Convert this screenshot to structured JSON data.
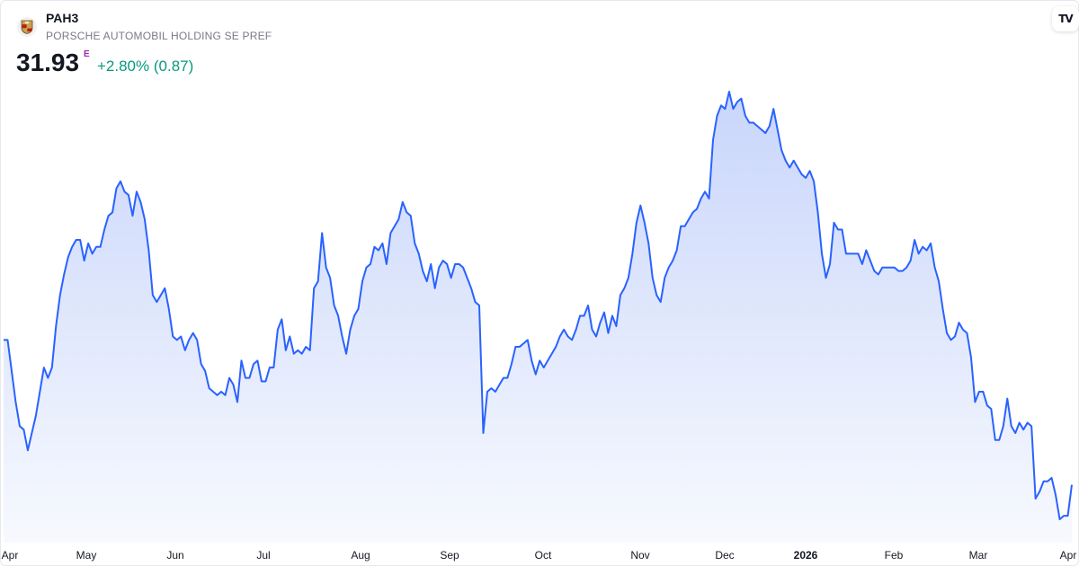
{
  "header": {
    "ticker": "PAH3",
    "company": "PORSCHE AUTOMOBIL HOLDING SE PREF",
    "price": "31.93",
    "price_flag": "E",
    "change": "+2.80% (0.87)",
    "logo_icon": "porsche-crest-icon",
    "brand_icon": "tradingview-logo-icon",
    "brand_text": "TV"
  },
  "colors": {
    "line": "#2962ff",
    "area_top": "#c9d6fb",
    "area_bottom": "#f7f9fe",
    "change_positive": "#089981",
    "flag": "#9c27b0"
  },
  "chart_data": {
    "type": "area",
    "x_ticks": [
      {
        "label": "Apr",
        "bold": false
      },
      {
        "label": "May",
        "bold": false
      },
      {
        "label": "Jun",
        "bold": false
      },
      {
        "label": "Jul",
        "bold": false
      },
      {
        "label": "Aug",
        "bold": false
      },
      {
        "label": "Sep",
        "bold": false
      },
      {
        "label": "Oct",
        "bold": false
      },
      {
        "label": "Nov",
        "bold": false
      },
      {
        "label": "Dec",
        "bold": false
      },
      {
        "label": "2026",
        "bold": true
      },
      {
        "label": "Feb",
        "bold": false
      },
      {
        "label": "Mar",
        "bold": false
      },
      {
        "label": "Apr",
        "bold": false
      }
    ],
    "values": [
      36.1,
      36.1,
      35.2,
      34.3,
      33.6,
      33.5,
      32.9,
      33.4,
      33.9,
      34.6,
      35.3,
      35.0,
      35.3,
      36.5,
      37.4,
      38.0,
      38.5,
      38.8,
      39.0,
      39.0,
      38.4,
      38.9,
      38.6,
      38.8,
      38.8,
      39.3,
      39.7,
      39.8,
      40.5,
      40.7,
      40.4,
      40.3,
      39.7,
      40.4,
      40.1,
      39.6,
      38.7,
      37.4,
      37.2,
      37.4,
      37.6,
      37.0,
      36.2,
      36.1,
      36.2,
      35.8,
      36.1,
      36.3,
      36.1,
      35.4,
      35.2,
      34.7,
      34.6,
      34.5,
      34.6,
      34.5,
      35.0,
      34.8,
      34.3,
      35.5,
      35.0,
      35.0,
      35.4,
      35.5,
      34.9,
      34.9,
      35.3,
      35.3,
      36.4,
      36.7,
      35.8,
      36.2,
      35.7,
      35.8,
      35.7,
      35.9,
      35.8,
      37.6,
      37.8,
      39.2,
      38.2,
      37.9,
      37.1,
      36.8,
      36.2,
      35.7,
      36.4,
      36.8,
      37.0,
      37.8,
      38.2,
      38.3,
      38.8,
      38.7,
      38.9,
      38.3,
      39.2,
      39.4,
      39.6,
      40.1,
      39.8,
      39.7,
      38.9,
      38.6,
      38.1,
      37.8,
      38.3,
      37.6,
      38.2,
      38.4,
      38.3,
      37.9,
      38.3,
      38.3,
      38.2,
      37.9,
      37.6,
      37.2,
      37.1,
      33.4,
      34.6,
      34.7,
      34.6,
      34.8,
      35.0,
      35.0,
      35.4,
      35.9,
      35.9,
      36.0,
      36.1,
      35.5,
      35.1,
      35.5,
      35.3,
      35.5,
      35.7,
      35.9,
      36.2,
      36.4,
      36.2,
      36.1,
      36.4,
      36.8,
      36.8,
      37.1,
      36.4,
      36.2,
      36.6,
      36.9,
      36.3,
      36.8,
      36.5,
      37.4,
      37.6,
      37.9,
      38.6,
      39.5,
      40.0,
      39.5,
      38.9,
      37.9,
      37.4,
      37.2,
      37.9,
      38.2,
      38.4,
      38.7,
      39.4,
      39.4,
      39.6,
      39.8,
      39.9,
      40.2,
      40.4,
      40.2,
      41.9,
      42.6,
      42.9,
      42.8,
      43.3,
      42.8,
      43.0,
      43.1,
      42.6,
      42.4,
      42.4,
      42.3,
      42.2,
      42.1,
      42.3,
      42.8,
      42.2,
      41.6,
      41.3,
      41.1,
      41.3,
      41.1,
      40.9,
      40.8,
      41.0,
      40.7,
      39.8,
      38.6,
      37.9,
      38.3,
      39.5,
      39.3,
      39.3,
      38.6,
      38.6,
      38.6,
      38.6,
      38.3,
      38.7,
      38.4,
      38.1,
      38.0,
      38.2,
      38.2,
      38.2,
      38.2,
      38.1,
      38.1,
      38.2,
      38.4,
      39.0,
      38.6,
      38.8,
      38.7,
      38.9,
      38.2,
      37.8,
      37.0,
      36.3,
      36.1,
      36.2,
      36.6,
      36.4,
      36.3,
      35.6,
      34.3,
      34.6,
      34.6,
      34.2,
      34.1,
      33.2,
      33.2,
      33.6,
      34.4,
      33.6,
      33.4,
      33.7,
      33.5,
      33.7,
      33.6,
      31.5,
      31.7,
      32.0,
      32.0,
      32.1,
      31.6,
      30.9,
      31.0,
      31.0,
      31.9
    ]
  }
}
